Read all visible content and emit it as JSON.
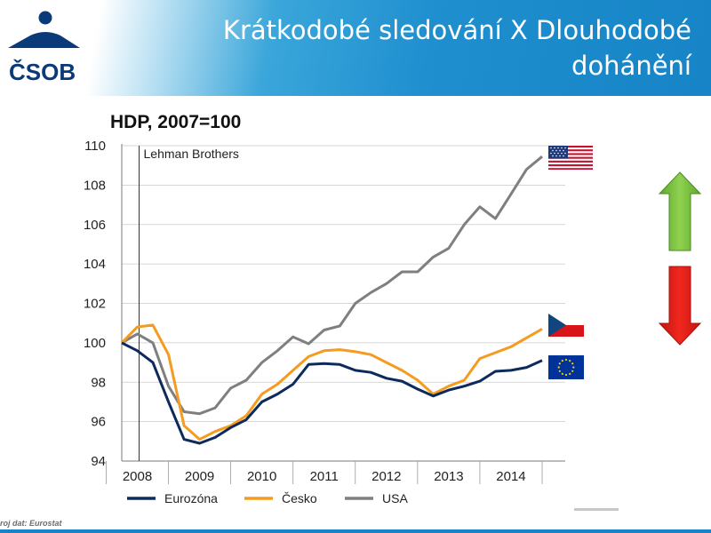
{
  "header": {
    "title": "Krátkodobé sledování X Dlouhodobé dohánění",
    "logo_text": "ČSOB",
    "brand_color": "#1684c6"
  },
  "footer": {
    "source": "roj dat: Eurostat"
  },
  "flags": [
    "usa-flag",
    "czech-flag",
    "eu-flag"
  ],
  "arrows": [
    {
      "name": "green-up-arrow",
      "color": "#7cc142"
    },
    {
      "name": "red-down-arrow",
      "color": "#e8231d"
    }
  ],
  "chart_data": {
    "type": "line",
    "title": "HDP, 2007=100",
    "xlabel": "",
    "ylabel": "",
    "ylim": [
      94,
      110
    ],
    "yticks": [
      94,
      96,
      98,
      100,
      102,
      104,
      106,
      108,
      110
    ],
    "xticks": [
      "2008",
      "2009",
      "2010",
      "2011",
      "2012",
      "2013",
      "2014"
    ],
    "xlim": [
      2007.75,
      2014.5
    ],
    "grid": true,
    "legend_position": "bottom",
    "annotation": {
      "label": "Lehman Brothers",
      "x": 2008.0
    },
    "x": [
      2007.75,
      2008.0,
      2008.25,
      2008.5,
      2008.75,
      2009.0,
      2009.25,
      2009.5,
      2009.75,
      2010.0,
      2010.25,
      2010.5,
      2010.75,
      2011.0,
      2011.25,
      2011.5,
      2011.75,
      2012.0,
      2012.25,
      2012.5,
      2012.75,
      2013.0,
      2013.25,
      2013.5,
      2013.75,
      2014.0,
      2014.25,
      2014.5
    ],
    "series": [
      {
        "name": "Eurozóna",
        "color": "#0d2a5c",
        "values": [
          100.0,
          99.6,
          99.0,
          97.0,
          95.1,
          94.9,
          95.2,
          95.7,
          96.1,
          97.0,
          97.4,
          97.9,
          98.9,
          98.95,
          98.9,
          98.6,
          98.5,
          98.2,
          98.05,
          97.65,
          97.3,
          97.6,
          97.8,
          98.05,
          98.55,
          98.6,
          98.75,
          99.1
        ]
      },
      {
        "name": "Česko",
        "color": "#f59b1f",
        "values": [
          100.0,
          100.8,
          100.9,
          99.4,
          95.8,
          95.1,
          95.5,
          95.8,
          96.3,
          97.4,
          97.9,
          98.6,
          99.3,
          99.6,
          99.65,
          99.55,
          99.4,
          99.0,
          98.6,
          98.1,
          97.4,
          97.8,
          98.1,
          99.2,
          99.5,
          99.8,
          100.25,
          100.7
        ]
      },
      {
        "name": "USA",
        "color": "#7f7f7f",
        "values": [
          100.0,
          100.45,
          100.0,
          97.8,
          96.5,
          96.4,
          96.7,
          97.7,
          98.1,
          99.0,
          99.6,
          100.3,
          99.95,
          100.65,
          100.85,
          102.0,
          102.55,
          103.0,
          103.6,
          103.6,
          104.35,
          104.8,
          106.0,
          106.9,
          106.3,
          107.55,
          108.8,
          109.45
        ]
      }
    ]
  }
}
